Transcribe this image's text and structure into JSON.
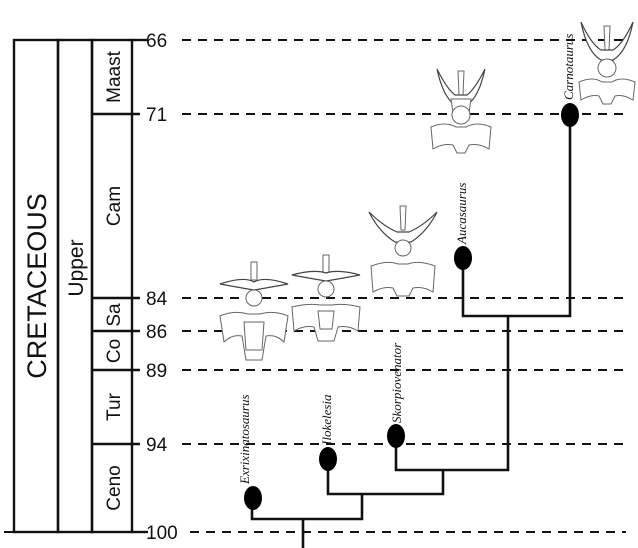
{
  "period": "CRETACEOUS",
  "epoch": "Upper",
  "ages": [
    "66",
    "71",
    "84",
    "86",
    "89",
    "94",
    "100"
  ],
  "stages": [
    "Maast",
    "Cam",
    "Sa",
    "Co",
    "Tur",
    "Ceno"
  ],
  "taxa": [
    {
      "name": "Exrixinatosaurus",
      "icon": "vertebra-icon"
    },
    {
      "name": "Ilokelesia",
      "icon": "vertebra-icon"
    },
    {
      "name": "Skorpiovenator",
      "icon": "vertebra-icon"
    },
    {
      "name": "Aucasaurus",
      "icon": "vertebra-icon"
    },
    {
      "name": "Carnotaurus",
      "icon": "vertebra-icon"
    }
  ]
}
